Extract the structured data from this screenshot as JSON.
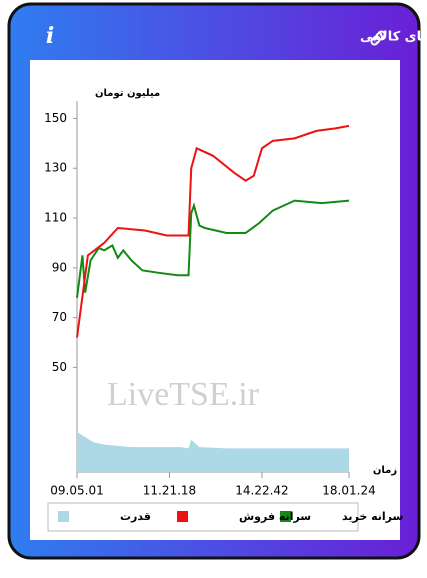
{
  "header_icon": "i",
  "chart_data": {
    "type": "line",
    "title": "سرانه ی خرید و فروش حقیقی در صندوق های کالایی",
    "y_label": "میلیون تومان",
    "x_label": "زمان",
    "watermark": "LiveTSE.ir",
    "xlim": [
      0,
      100
    ],
    "xticks": [
      {
        "value": 0,
        "label": "09.05.01"
      },
      {
        "value": 34,
        "label": "11.21.18"
      },
      {
        "value": 68,
        "label": "14.22.42"
      },
      {
        "value": 100,
        "label": "18.01.24"
      }
    ],
    "ylim": [
      8,
      157
    ],
    "yticks": [
      50,
      70,
      90,
      110,
      130,
      150
    ],
    "series": [
      {
        "name": "سرانه خرید",
        "color": "#138a13",
        "style": "line",
        "x": [
          0,
          2,
          3,
          5,
          8,
          10,
          13,
          15,
          17,
          20,
          24,
          30,
          37,
          41,
          42,
          43,
          45,
          47,
          55,
          62,
          67,
          72,
          80,
          90,
          100
        ],
        "values": [
          78,
          95,
          80,
          93,
          98,
          97,
          99,
          94,
          97,
          93,
          89,
          88,
          87,
          87,
          112,
          115,
          107,
          106,
          104,
          104,
          108,
          113,
          117,
          116,
          117
        ]
      },
      {
        "name": "سرانه فروش",
        "color": "#ee1111",
        "style": "line",
        "x": [
          0,
          4,
          10,
          15,
          25,
          33,
          41,
          42,
          44,
          50,
          58,
          62,
          65,
          68,
          72,
          80,
          88,
          95,
          100
        ],
        "values": [
          62,
          95,
          100,
          106,
          105,
          103,
          103,
          130,
          138,
          135,
          128,
          125,
          127,
          138,
          141,
          142,
          145,
          146,
          147
        ]
      },
      {
        "name": "قدرت",
        "color": "#add8e6",
        "style": "area",
        "x": [
          0,
          3,
          6,
          10,
          20,
          30,
          38,
          41,
          42,
          45,
          55,
          65,
          75,
          85,
          95,
          100
        ],
        "values": [
          24,
          22,
          20,
          19,
          18,
          18,
          18,
          17.5,
          21,
          18,
          17.5,
          17.5,
          17.5,
          17.5,
          17.5,
          17.5
        ]
      }
    ]
  }
}
